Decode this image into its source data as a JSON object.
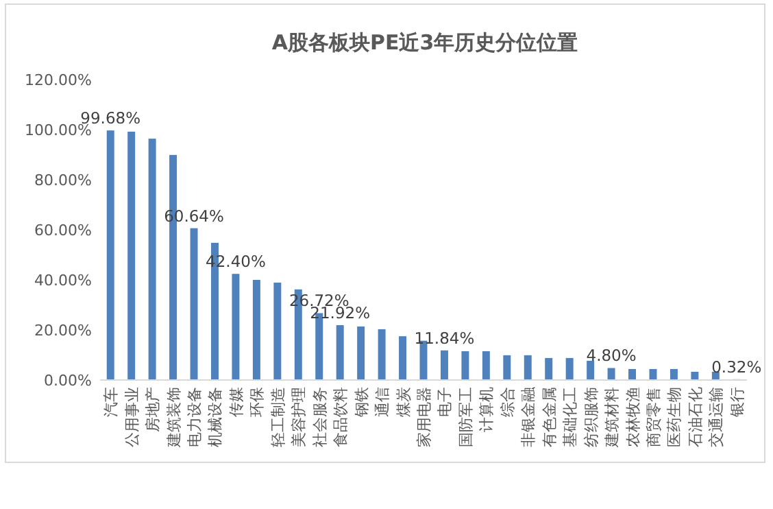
{
  "chart_data": {
    "type": "bar",
    "title": "A股各板块PE近3年历史分位位置",
    "categories": [
      "汽车",
      "公用事业",
      "房地产",
      "建筑装饰",
      "电力设备",
      "机械设备",
      "传媒",
      "环保",
      "轻工制造",
      "美容护理",
      "社会服务",
      "食品饮料",
      "钢铁",
      "通信",
      "煤炭",
      "家用电器",
      "电子",
      "国防军工",
      "计算机",
      "综合",
      "非银金融",
      "有色金属",
      "基础化工",
      "纺织服饰",
      "建筑材料",
      "农林牧渔",
      "商贸零售",
      "医药生物",
      "石油石化",
      "交通运输",
      "银行"
    ],
    "values": [
      99.68,
      99.2,
      96.4,
      89.9,
      60.64,
      54.8,
      42.4,
      40.0,
      38.9,
      36.2,
      26.72,
      21.92,
      21.4,
      20.3,
      17.5,
      15.7,
      11.84,
      11.5,
      11.5,
      9.9,
      9.9,
      8.8,
      8.8,
      7.7,
      4.8,
      4.4,
      4.4,
      4.4,
      3.3,
      3.3,
      0.32
    ],
    "value_labels": [
      "99.68%",
      null,
      null,
      null,
      "60.64%",
      null,
      "42.40%",
      null,
      null,
      null,
      "26.72%",
      "21.92%",
      null,
      null,
      null,
      null,
      "11.84%",
      null,
      null,
      null,
      null,
      null,
      null,
      null,
      "4.80%",
      null,
      null,
      null,
      null,
      null,
      "0.32%"
    ],
    "color": "#4f81bd",
    "ylim": [
      0,
      120
    ],
    "yticks": [
      {
        "value": 0,
        "label": "0.00%"
      },
      {
        "value": 20,
        "label": "20.00%"
      },
      {
        "value": 40,
        "label": "40.00%"
      },
      {
        "value": 60,
        "label": "60.00%"
      },
      {
        "value": 80,
        "label": "80.00%"
      },
      {
        "value": 100,
        "label": "100.00%"
      },
      {
        "value": 120,
        "label": "120.00%"
      }
    ]
  }
}
